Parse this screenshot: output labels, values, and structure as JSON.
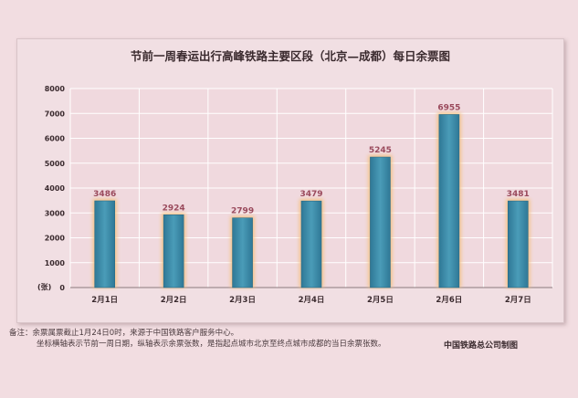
{
  "chart_data": {
    "type": "bar",
    "title": "节前一周春运出行高峰铁路主要区段（北京—成都）每日余票图",
    "categories": [
      "2月1日",
      "2月2日",
      "2月3日",
      "2月4日",
      "2月5日",
      "2月6日",
      "2月7日"
    ],
    "values": [
      3486,
      2924,
      2799,
      3479,
      5245,
      6955,
      3481
    ],
    "yticks": [
      "0",
      "1000",
      "2000",
      "3000",
      "4000",
      "5000",
      "6000",
      "7000",
      "8000"
    ],
    "ylim": [
      0,
      8000
    ],
    "ylabel": "(张)",
    "xlabel": "",
    "grid": true,
    "colors": {
      "bar": "#3a8aa6",
      "bar_glow": "#f3c07a",
      "value_label": "#9a4a5c",
      "grid": "#ffffff"
    }
  },
  "notes": {
    "line1_prefix": "备注：",
    "line1": "余票属票截止1月24日0时，来源于中国铁路客户服务中心。",
    "line2": "坐标横轴表示节前一周日期，纵轴表示余票张数，是指起点城市北京至终点城市成都的当日余票张数。"
  },
  "credit": "中国铁路总公司制图"
}
